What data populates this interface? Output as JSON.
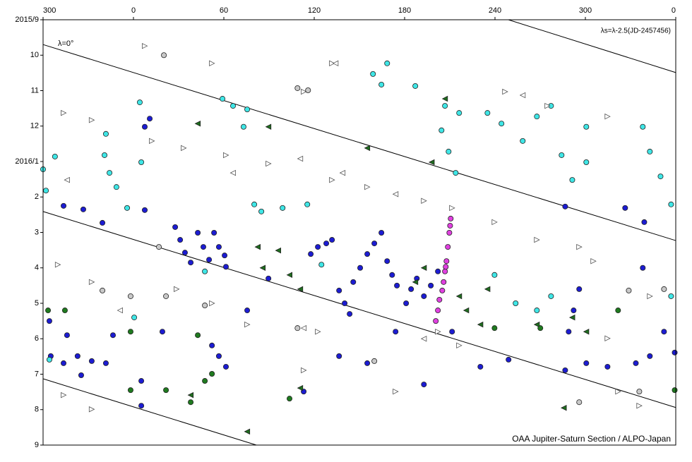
{
  "chart_data": {
    "type": "scatter",
    "annotations": [
      "λ=0°",
      "λs=λ-2.5(JD-2457456)",
      "OAA Jupiter-Saturn Section / ALPO-Japan"
    ],
    "xlim": [
      -60,
      360
    ],
    "xticks": [
      {
        "value": -60,
        "label": "300"
      },
      0,
      60,
      120,
      180,
      240,
      300,
      {
        "value": 360,
        "label": "0"
      }
    ],
    "ylim": [
      0,
      12
    ],
    "yticks": [
      {
        "value": 0,
        "label": "2015/9"
      },
      {
        "value": 1,
        "label": "10"
      },
      {
        "value": 2,
        "label": "11"
      },
      {
        "value": 3,
        "label": "12"
      },
      {
        "value": 4,
        "label": "2016/1"
      },
      {
        "value": 5,
        "label": "2"
      },
      {
        "value": 6,
        "label": "3"
      },
      {
        "value": 7,
        "label": "4"
      },
      {
        "value": 8,
        "label": "5"
      },
      {
        "value": 9,
        "label": "6"
      },
      {
        "value": 10,
        "label": "7"
      },
      {
        "value": 11,
        "label": "8"
      },
      {
        "value": 12,
        "label": "9"
      }
    ],
    "y_inverted": true,
    "grid": false,
    "reference_lines": [
      {
        "x": [
          -60,
          360
        ],
        "y": [
          0.7,
          6.23
        ]
      },
      {
        "x": [
          248.9,
          360
        ],
        "y": [
          0,
          1.49
        ]
      },
      {
        "x": [
          -60,
          360
        ],
        "y": [
          5.41,
          10.94
        ]
      },
      {
        "x": [
          -60,
          81.6
        ],
        "y": [
          10.13,
          12
        ]
      }
    ],
    "series": [
      {
        "color": "#1c1cd2",
        "marker": "circle",
        "x": [
          7.5,
          10.8,
          -46.4,
          -33.3,
          -20.6,
          7.5,
          27.7,
          31.0,
          34.2,
          38.0,
          42.7,
          46.4,
          50.2,
          53.5,
          56.7,
          60.5,
          61.4,
          117.7,
          122.4,
          128.0,
          131.8,
          136.5,
          140.2,
          143.5,
          145.9,
          150.5,
          155.2,
          159.9,
          164.6,
          168.4,
          171.7,
          174.9,
          181.0,
          184.3,
          188.1,
          192.8,
          197.4,
          202.1,
          75.5,
          89.6,
          -55.8,
          -54.9,
          -46.4,
          -37.1,
          -27.7,
          -18.3,
          -34.7,
          -44.1,
          -13.6,
          5.2,
          19.2,
          52.1,
          56.7,
          61.4,
          136.5,
          155.2,
          174.0,
          211.5,
          230.3,
          249.0,
          286.6,
          288.9,
          292.2,
          295.9,
          300.6,
          314.7,
          333.5,
          342.8,
          352.2,
          359.3,
          286.6,
          326.4,
          339.1,
          338.1,
          192.8,
          113.0,
          5.2
        ],
        "y": [
          3.02,
          2.79,
          5.25,
          5.35,
          5.73,
          5.37,
          5.85,
          6.21,
          6.57,
          6.85,
          6.01,
          6.41,
          6.77,
          6.01,
          6.41,
          6.65,
          6.97,
          6.61,
          6.41,
          6.31,
          6.21,
          7.64,
          8.0,
          8.3,
          7.4,
          7.0,
          6.61,
          6.31,
          6.01,
          6.81,
          7.2,
          7.5,
          8.0,
          7.6,
          7.3,
          7.8,
          7.5,
          7.1,
          8.2,
          7.3,
          8.5,
          9.49,
          9.69,
          9.49,
          9.63,
          9.69,
          10.03,
          8.9,
          8.9,
          10.19,
          8.8,
          9.19,
          9.49,
          9.79,
          9.49,
          9.69,
          8.8,
          8.8,
          9.79,
          9.59,
          9.89,
          8.8,
          8.2,
          7.6,
          9.69,
          9.79,
          9.69,
          9.49,
          8.8,
          9.39,
          5.27,
          5.31,
          5.71,
          7.0,
          10.29,
          10.49,
          10.89
        ]
      },
      {
        "color": "#3fe6e6",
        "marker": "circle",
        "x": [
          -60,
          -58.1,
          -52.1,
          -18.3,
          -19.2,
          -15.9,
          -11.3,
          -4.2,
          5.2,
          4.2,
          59.1,
          66.1,
          73.1,
          75.5,
          80.2,
          84.9,
          99.0,
          115.4,
          124.8,
          159.0,
          164.6,
          168.4,
          187.1,
          204.5,
          209.2,
          213.9,
          206.8,
          216.2,
          235.0,
          244.3,
          258.4,
          267.8,
          277.2,
          284.2,
          291.3,
          300.6,
          300.6,
          338.1,
          342.8,
          349.9,
          356.9,
          239.7,
          253.7,
          267.8,
          277.2,
          356.9,
          -55.8,
          47.4,
          0.5
        ],
        "y": [
          4.22,
          4.82,
          3.86,
          3.22,
          3.82,
          4.32,
          4.72,
          5.31,
          4.02,
          2.33,
          2.23,
          2.43,
          3.02,
          2.53,
          5.21,
          5.41,
          5.31,
          5.21,
          6.91,
          1.53,
          1.83,
          1.23,
          1.87,
          3.12,
          3.72,
          4.32,
          2.43,
          2.63,
          2.63,
          2.93,
          3.42,
          2.73,
          2.43,
          3.82,
          4.52,
          4.02,
          3.02,
          3.02,
          3.72,
          4.42,
          5.21,
          7.2,
          8.0,
          8.2,
          7.8,
          7.8,
          9.59,
          7.1,
          8.4
        ]
      },
      {
        "color": "#1f6e1f",
        "marker": "triangle-left",
        "x": [
          42.7,
          89.6,
          155.2,
          206.8,
          198.0,
          82.5,
          85.8,
          96.1,
          103.6,
          110.7,
          187.1,
          192.8,
          216.2,
          220.9,
          235.0,
          230.3,
          267.8,
          291.3,
          300.6,
          110.7,
          75.5,
          285.7,
          38.0
        ],
        "y": [
          2.93,
          3.02,
          3.62,
          2.23,
          4.02,
          6.41,
          7.0,
          6.51,
          7.2,
          7.6,
          7.4,
          7.0,
          7.8,
          8.2,
          7.6,
          8.6,
          8.6,
          8.4,
          8.8,
          10.39,
          11.62,
          10.95,
          10.59
        ]
      },
      {
        "color": "#1f7a1f",
        "marker": "circle",
        "x": [
          -56.7,
          -45.5,
          -1.9,
          42.7,
          47.4,
          52.1,
          -1.9,
          21.6,
          38.0,
          103.6,
          239.7,
          270.1,
          321.7,
          359.3
        ],
        "y": [
          8.2,
          8.2,
          8.8,
          8.9,
          10.19,
          9.99,
          10.45,
          10.45,
          10.79,
          10.69,
          8.7,
          8.7,
          8.2,
          10.45
        ]
      },
      {
        "color": "#ffffff",
        "marker": "triangle-right",
        "x": [
          7.5,
          52.1,
          131.8,
          113.0,
          -46.4,
          -27.7,
          12.2,
          33.3,
          61.4,
          89.6,
          131.8,
          155.2,
          192.8,
          211.5,
          239.7,
          267.8,
          295.9,
          305.3,
          246.7,
          274.8,
          314.7,
          -50.2,
          -27.7,
          28.6,
          52.1,
          75.5,
          122.4,
          202.1,
          216.2,
          314.7,
          342.8,
          -46.4,
          -27.7,
          113.0,
          174.0,
          321.7,
          335.8
        ],
        "y": [
          0.74,
          1.23,
          1.23,
          2.03,
          2.63,
          2.83,
          3.42,
          3.62,
          3.82,
          4.06,
          4.52,
          4.72,
          5.11,
          5.31,
          5.71,
          6.21,
          6.41,
          6.81,
          2.03,
          2.43,
          2.73,
          6.91,
          7.4,
          7.6,
          8.0,
          8.6,
          8.8,
          8.8,
          9.19,
          8.99,
          7.8,
          10.59,
          10.99,
          9.89,
          10.49,
          10.49,
          10.89
        ]
      },
      {
        "color": "#ffffff",
        "marker": "triangle-left",
        "x": [
          134.2,
          110.7,
          138.8,
          174.0,
          -44.1,
          66.1,
          258.4,
          113.0,
          192.8,
          -8.9
        ],
        "y": [
          1.23,
          3.92,
          4.32,
          4.92,
          4.52,
          4.32,
          2.13,
          8.7,
          9.0,
          8.2
        ]
      },
      {
        "color": "#c8c8c8",
        "marker": "circle",
        "x": [
          20.2,
          108.9,
          115.9,
          16.9,
          -20.6,
          -1.9,
          21.6,
          47.4,
          108.9,
          159.9,
          328.8,
          352.2,
          295.9,
          335.8
        ],
        "y": [
          1.0,
          1.93,
          1.99,
          6.41,
          7.64,
          7.8,
          7.8,
          8.06,
          8.7,
          9.63,
          7.64,
          7.6,
          10.79,
          10.49
        ]
      },
      {
        "color": "#e040e0",
        "marker": "circle",
        "x": [
          210.6,
          209.7,
          208.7,
          207.8,
          206.8,
          205.9,
          205.0,
          203.1,
          202.1,
          200.7,
          210.2,
          207.3
        ],
        "y": [
          5.61,
          6.01,
          6.41,
          6.81,
          7.1,
          7.4,
          7.64,
          7.9,
          8.2,
          8.5,
          5.81,
          6.97
        ]
      }
    ]
  }
}
